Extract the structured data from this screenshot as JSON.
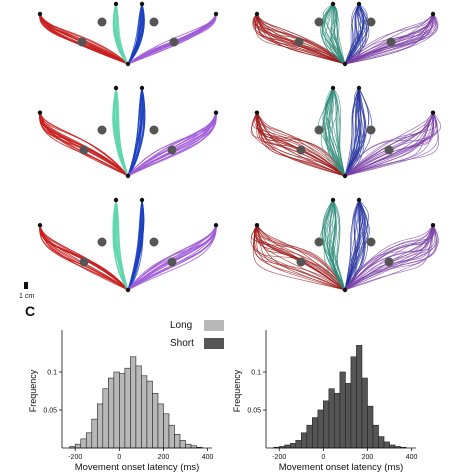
{
  "panel_label": "C",
  "scale_bar_label": "1 cm",
  "trajectory_panels": [
    {
      "style": "clean",
      "colors": [
        "#c8201f",
        "#5fd6ad",
        "#1c3fbf",
        "#a05ad8"
      ]
    },
    {
      "style": "noisy",
      "colors": [
        "#9e1a1a",
        "#2f8c7a",
        "#26339e",
        "#7b3fa6"
      ]
    },
    {
      "style": "clean",
      "colors": [
        "#c8201f",
        "#5fd6ad",
        "#1c3fbf",
        "#a05ad8"
      ]
    },
    {
      "style": "noisy",
      "colors": [
        "#9e1a1a",
        "#2f8c7a",
        "#26339e",
        "#7b3fa6"
      ]
    },
    {
      "style": "clean",
      "colors": [
        "#c8201f",
        "#5fd6ad",
        "#1c3fbf",
        "#a05ad8"
      ]
    },
    {
      "style": "noisy",
      "colors": [
        "#9e1a1a",
        "#2f8c7a",
        "#26339e",
        "#7b3fa6"
      ]
    }
  ],
  "legend": {
    "items": [
      {
        "label": "Long",
        "color": "#b8b8b8"
      },
      {
        "label": "Short",
        "color": "#555555"
      }
    ]
  },
  "chart_data": [
    {
      "type": "bar",
      "xlabel": "Movement onset latency (ms)",
      "ylabel": "Frequency",
      "xlim": [
        -260,
        420
      ],
      "ylim": [
        0,
        0.15
      ],
      "xticks": [
        -200,
        0,
        200,
        400
      ],
      "xtick_labels": [
        "-200",
        "0",
        "200",
        "400"
      ],
      "yticks": [
        0.05,
        0.1
      ],
      "ytick_labels": [
        "0.05",
        "0.1"
      ],
      "bin_width": 25,
      "bins": [
        -225,
        -200,
        -175,
        -150,
        -125,
        -100,
        -75,
        -50,
        -25,
        0,
        25,
        50,
        75,
        100,
        125,
        150,
        175,
        200,
        225,
        250,
        275,
        300,
        325,
        350
      ],
      "values": [
        0.002,
        0.005,
        0.012,
        0.02,
        0.038,
        0.058,
        0.078,
        0.092,
        0.1,
        0.098,
        0.105,
        0.12,
        0.108,
        0.095,
        0.088,
        0.072,
        0.058,
        0.045,
        0.03,
        0.018,
        0.01,
        0.005,
        0.003,
        0.001
      ],
      "bar_color": "#b8b8b8"
    },
    {
      "type": "bar",
      "xlabel": "Movement onset latency (ms)",
      "ylabel": "Frequency",
      "xlim": [
        -260,
        420
      ],
      "ylim": [
        0,
        0.15
      ],
      "xticks": [
        -200,
        0,
        200,
        400
      ],
      "xtick_labels": [
        "-200",
        "0",
        "200",
        "400"
      ],
      "yticks": [
        0.05,
        0.1
      ],
      "ytick_labels": [
        "0.05",
        "0.1"
      ],
      "bin_width": 25,
      "bins": [
        -225,
        -200,
        -175,
        -150,
        -125,
        -100,
        -75,
        -50,
        -25,
        0,
        25,
        50,
        75,
        100,
        125,
        150,
        175,
        200,
        225,
        250,
        275,
        300,
        325,
        350
      ],
      "values": [
        0.001,
        0.002,
        0.004,
        0.006,
        0.01,
        0.02,
        0.03,
        0.04,
        0.05,
        0.062,
        0.078,
        0.072,
        0.1,
        0.085,
        0.12,
        0.135,
        0.092,
        0.055,
        0.03,
        0.015,
        0.008,
        0.004,
        0.002,
        0.001
      ],
      "bar_color": "#555555"
    }
  ]
}
